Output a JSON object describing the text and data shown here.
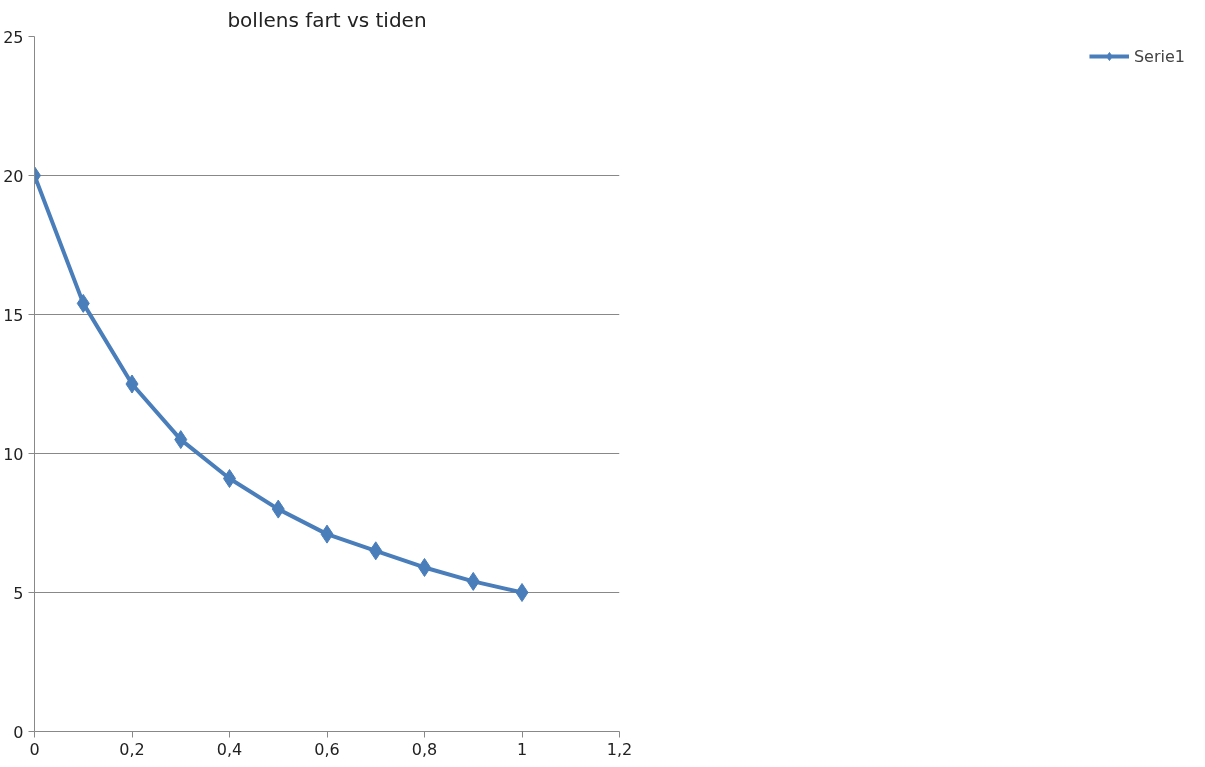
{
  "chart_data": {
    "type": "line",
    "title": "bollens fart vs tiden",
    "x": [
      0,
      0.1,
      0.2,
      0.3,
      0.4,
      0.5,
      0.6,
      0.7,
      0.8,
      0.9,
      1
    ],
    "series": [
      {
        "name": "Serie1",
        "color": "#4a7ebb",
        "values": [
          20,
          15.4,
          12.5,
          10.5,
          9.1,
          8,
          7.1,
          6.5,
          5.9,
          5.4,
          5
        ]
      }
    ],
    "xlim": [
      0,
      1.2
    ],
    "ylim": [
      0,
      25
    ],
    "xticks": [
      0,
      {
        "value": 0.2,
        "label": "0,2"
      },
      {
        "value": 0.4,
        "label": "0,4"
      },
      {
        "value": 0.6,
        "label": "0,6"
      },
      {
        "value": 0.8,
        "label": "0,8"
      },
      1,
      {
        "value": 1.2,
        "label": "1,2"
      }
    ],
    "yticks": [
      0,
      5,
      10,
      15,
      20,
      25
    ],
    "grid": "y",
    "legend": "right",
    "marker": "diamond",
    "line_style": "solid"
  }
}
